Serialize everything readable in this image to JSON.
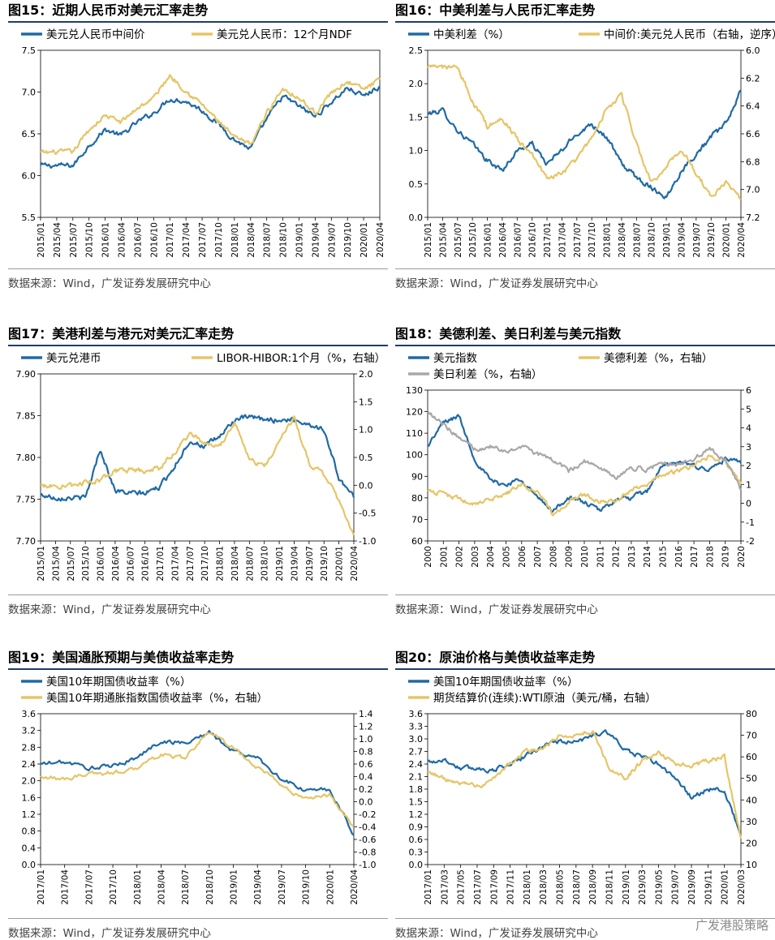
{
  "watermark": "广发港股策略",
  "chart_data": [
    {
      "id": "fig15",
      "title": "图15：近期人民币对美元汇率走势",
      "source": "数据来源：Wind，广发证券发展研究中心",
      "type": "line",
      "legend_position": "top",
      "x": [
        "2015/01",
        "2015/04",
        "2015/07",
        "2015/10",
        "2016/01",
        "2016/04",
        "2016/07",
        "2016/10",
        "2017/01",
        "2017/04",
        "2017/07",
        "2017/10",
        "2018/01",
        "2018/04",
        "2018/07",
        "2018/10",
        "2019/01",
        "2019/04",
        "2019/07",
        "2019/10",
        "2020/01",
        "2020/04"
      ],
      "x_ticks": [
        "2015/01",
        "2015/04",
        "2015/07",
        "2015/10",
        "2016/01",
        "2016/04",
        "2016/07",
        "2016/10",
        "2017/01",
        "2017/04",
        "2017/07",
        "2017/10",
        "2018/01",
        "2018/04",
        "2018/07",
        "2018/10",
        "2019/01",
        "2019/04",
        "2019/07",
        "2019/10",
        "2020/01",
        "2020/04"
      ],
      "ylim": [
        5.5,
        7.5
      ],
      "y_ticks": [
        "5.5",
        "6.0",
        "6.5",
        "7.0",
        "7.5"
      ],
      "series": [
        {
          "name": "美元兑人民币中间价",
          "color": "#1f6aa5",
          "axis": "left",
          "values": [
            6.12,
            6.12,
            6.12,
            6.36,
            6.55,
            6.48,
            6.64,
            6.75,
            6.92,
            6.89,
            6.78,
            6.62,
            6.43,
            6.32,
            6.68,
            6.95,
            6.83,
            6.71,
            6.88,
            7.05,
            6.95,
            7.07
          ]
        },
        {
          "name": "美元兑人民币：12个月NDF",
          "color": "#e6c567",
          "axis": "left",
          "values": [
            6.27,
            6.28,
            6.28,
            6.55,
            6.72,
            6.64,
            6.81,
            6.93,
            7.2,
            7.02,
            6.85,
            6.65,
            6.45,
            6.37,
            6.75,
            7.05,
            6.93,
            6.75,
            6.99,
            7.13,
            7.03,
            7.15
          ]
        }
      ]
    },
    {
      "id": "fig16",
      "title": "图16：中美利差与人民币汇率走势",
      "source": "数据来源：Wind，广发证券发展研究中心",
      "type": "line",
      "legend_position": "top",
      "x": [
        "2015/01",
        "2015/04",
        "2015/07",
        "2015/10",
        "2016/01",
        "2016/04",
        "2016/07",
        "2016/10",
        "2017/01",
        "2017/04",
        "2017/07",
        "2017/10",
        "2018/01",
        "2018/04",
        "2018/07",
        "2018/10",
        "2019/01",
        "2019/04",
        "2019/07",
        "2019/10",
        "2020/01",
        "2020/04"
      ],
      "x_ticks": [
        "2015/01",
        "2015/04",
        "2015/07",
        "2015/10",
        "2016/01",
        "2016/04",
        "2016/07",
        "2016/10",
        "2017/01",
        "2017/04",
        "2017/07",
        "2017/10",
        "2018/01",
        "2018/04",
        "2018/07",
        "2018/10",
        "2019/01",
        "2019/04",
        "2019/07",
        "2019/10",
        "2020/01",
        "2020/04"
      ],
      "ylim": [
        0.0,
        2.5
      ],
      "y_ticks": [
        "0.0",
        "0.5",
        "1.0",
        "1.5",
        "2.0",
        "2.5"
      ],
      "y2lim": [
        6.0,
        7.2
      ],
      "y2_reversed": true,
      "y2_ticks": [
        "6.0",
        "6.2",
        "6.4",
        "6.6",
        "6.8",
        "7.0",
        "7.2"
      ],
      "series": [
        {
          "name": "中美利差（%）",
          "color": "#1f6aa5",
          "axis": "left",
          "values": [
            1.55,
            1.6,
            1.3,
            1.1,
            0.85,
            0.7,
            1.0,
            1.1,
            0.8,
            1.0,
            1.25,
            1.4,
            1.2,
            0.8,
            0.6,
            0.45,
            0.3,
            0.7,
            0.95,
            1.2,
            1.4,
            1.9
          ]
        },
        {
          "name": "中间价:美元兑人民币（右轴，逆序）",
          "color": "#e6c567",
          "axis": "right",
          "values": [
            6.12,
            6.12,
            6.12,
            6.36,
            6.55,
            6.48,
            6.64,
            6.75,
            6.92,
            6.89,
            6.78,
            6.62,
            6.43,
            6.32,
            6.68,
            6.95,
            6.83,
            6.71,
            6.88,
            7.05,
            6.95,
            7.07
          ]
        }
      ]
    },
    {
      "id": "fig17",
      "title": "图17：美港利差与港元对美元汇率走势",
      "source": "数据来源：Wind，广发证券发展研究中心",
      "type": "line",
      "legend_position": "top",
      "x": [
        "2015/01",
        "2015/04",
        "2015/07",
        "2015/10",
        "2016/01",
        "2016/04",
        "2016/07",
        "2016/10",
        "2017/01",
        "2017/04",
        "2017/07",
        "2017/10",
        "2018/01",
        "2018/04",
        "2018/07",
        "2018/10",
        "2019/01",
        "2019/04",
        "2019/07",
        "2019/10",
        "2020/01",
        "2020/04"
      ],
      "x_ticks": [
        "2015/01",
        "2015/04",
        "2015/07",
        "2015/10",
        "2016/01",
        "2016/04",
        "2016/07",
        "2016/10",
        "2017/01",
        "2017/04",
        "2017/07",
        "2017/10",
        "2018/01",
        "2018/04",
        "2018/07",
        "2018/10",
        "2019/01",
        "2019/04",
        "2019/07",
        "2019/10",
        "2020/01",
        "2020/04"
      ],
      "ylim": [
        7.7,
        7.9
      ],
      "y_ticks": [
        "7.70",
        "7.75",
        "7.80",
        "7.85",
        "7.90"
      ],
      "y2lim": [
        -1.0,
        2.0
      ],
      "y2_ticks": [
        "-1.0",
        "-0.5",
        "0.0",
        "0.5",
        "1.0",
        "1.5",
        "2.0"
      ],
      "series": [
        {
          "name": "美元兑港币",
          "color": "#1f6aa5",
          "axis": "left",
          "values": [
            7.755,
            7.752,
            7.752,
            7.751,
            7.81,
            7.76,
            7.757,
            7.757,
            7.765,
            7.79,
            7.82,
            7.813,
            7.825,
            7.845,
            7.848,
            7.845,
            7.845,
            7.845,
            7.84,
            7.833,
            7.775,
            7.752
          ]
        },
        {
          "name": "LIBOR-HIBOR:1个月（%，右轴）",
          "color": "#e6c567",
          "axis": "right",
          "values": [
            0.0,
            0.0,
            0.0,
            0.05,
            0.1,
            0.25,
            0.28,
            0.25,
            0.3,
            0.6,
            0.95,
            0.75,
            0.7,
            1.1,
            0.5,
            0.3,
            0.8,
            1.2,
            0.4,
            0.2,
            -0.3,
            -0.9
          ]
        }
      ]
    },
    {
      "id": "fig18",
      "title": "图18：美德利差、美日利差与美元指数",
      "source": "数据来源：Wind，广发证券发展研究中心",
      "type": "line",
      "legend_position": "top",
      "x": [
        "2000",
        "2001",
        "2002",
        "2003",
        "2004",
        "2005",
        "2006",
        "2007",
        "2008",
        "2009",
        "2010",
        "2011",
        "2012",
        "2013",
        "2014",
        "2015",
        "2016",
        "2017",
        "2018",
        "2019",
        "2020"
      ],
      "x_ticks": [
        "2000",
        "2001",
        "2002",
        "2003",
        "2004",
        "2005",
        "2006",
        "2007",
        "2008",
        "2009",
        "2010",
        "2011",
        "2012",
        "2013",
        "2014",
        "2015",
        "2016",
        "2017",
        "2018",
        "2019",
        "2020"
      ],
      "ylim": [
        60,
        130
      ],
      "y_ticks": [
        "60",
        "70",
        "80",
        "90",
        "100",
        "110",
        "120",
        "130"
      ],
      "y2lim": [
        -2,
        6
      ],
      "y2_ticks": [
        "-2",
        "-1",
        "0",
        "1",
        "2",
        "3",
        "4",
        "5",
        "6"
      ],
      "series": [
        {
          "name": "美元指数",
          "color": "#1f6aa5",
          "axis": "left",
          "values": [
            104,
            115,
            118,
            98,
            88,
            86,
            89,
            80,
            74,
            80,
            78,
            74,
            79,
            80,
            83,
            95,
            96,
            95,
            93,
            98,
            96
          ]
        },
        {
          "name": "美德利差（%，右轴）",
          "color": "#e6c567",
          "axis": "right",
          "values": [
            0.6,
            0.5,
            0.2,
            0.0,
            0.2,
            0.5,
            1.0,
            0.6,
            -0.6,
            0.1,
            0.5,
            0.1,
            0.1,
            0.7,
            0.9,
            1.6,
            1.7,
            2.0,
            2.5,
            2.2,
            1.0
          ]
        },
        {
          "name": "美日利差（%，右轴）",
          "color": "#a8a8a8",
          "axis": "right",
          "values": [
            4.8,
            4.2,
            3.5,
            2.9,
            3.0,
            2.8,
            3.0,
            2.6,
            2.3,
            1.7,
            2.2,
            1.9,
            1.4,
            1.9,
            1.8,
            2.1,
            2.1,
            2.4,
            2.9,
            2.3,
            0.7
          ]
        }
      ]
    },
    {
      "id": "fig19",
      "title": "图19：美国通胀预期与美债收益率走势",
      "source": "数据来源：Wind，广发证券发展研究中心",
      "type": "line",
      "legend_position": "top",
      "x": [
        "2017/01",
        "2017/04",
        "2017/07",
        "2017/10",
        "2018/01",
        "2018/04",
        "2018/07",
        "2018/10",
        "2019/01",
        "2019/04",
        "2019/07",
        "2019/10",
        "2020/01",
        "2020/04"
      ],
      "x_ticks": [
        "2017/01",
        "2017/04",
        "2017/07",
        "2017/10",
        "2018/01",
        "2018/04",
        "2018/07",
        "2018/10",
        "2019/01",
        "2019/04",
        "2019/07",
        "2019/10",
        "2020/01",
        "2020/04"
      ],
      "ylim": [
        0.0,
        3.6
      ],
      "y_ticks": [
        "0.0",
        "0.4",
        "0.8",
        "1.2",
        "1.6",
        "2.0",
        "2.4",
        "2.8",
        "3.2",
        "3.6"
      ],
      "y2lim": [
        -1.0,
        1.4
      ],
      "y2_ticks": [
        "-1.0",
        "-0.8",
        "-0.6",
        "-0.4",
        "-0.2",
        "0.0",
        "0.2",
        "0.4",
        "0.6",
        "0.8",
        "1.0",
        "1.2",
        "1.4"
      ],
      "series": [
        {
          "name": "美国10年期国债收益率（%）",
          "color": "#1f6aa5",
          "axis": "left",
          "values": [
            2.4,
            2.45,
            2.3,
            2.35,
            2.55,
            2.95,
            2.9,
            3.15,
            2.7,
            2.55,
            2.05,
            1.75,
            1.8,
            0.7
          ]
        },
        {
          "name": "美国10年期通胀指数国债收益率（%，右轴）",
          "color": "#e6c567",
          "axis": "right",
          "values": [
            0.4,
            0.35,
            0.45,
            0.45,
            0.55,
            0.75,
            0.7,
            1.1,
            0.85,
            0.55,
            0.25,
            0.05,
            0.1,
            -0.4
          ]
        }
      ]
    },
    {
      "id": "fig20",
      "title": "图20：原油价格与美债收益率走势",
      "source": "数据来源：Wind，广发证券发展研究中心",
      "type": "line",
      "legend_position": "top",
      "x": [
        "2017/01",
        "2017/03",
        "2017/05",
        "2017/07",
        "2017/09",
        "2017/11",
        "2018/01",
        "2018/03",
        "2018/05",
        "2018/07",
        "2018/09",
        "2018/11",
        "2019/01",
        "2019/03",
        "2019/05",
        "2019/07",
        "2019/09",
        "2019/11",
        "2020/01",
        "2020/03"
      ],
      "x_ticks": [
        "2017/01",
        "2017/03",
        "2017/05",
        "2017/07",
        "2017/09",
        "2017/11",
        "2018/01",
        "2018/03",
        "2018/05",
        "2018/07",
        "2018/09",
        "2018/11",
        "2019/01",
        "2019/03",
        "2019/05",
        "2019/07",
        "2019/09",
        "2019/11",
        "2020/01",
        "2020/03"
      ],
      "ylim": [
        0.0,
        3.6
      ],
      "y_ticks": [
        "0.0",
        "0.3",
        "0.6",
        "0.9",
        "1.2",
        "1.5",
        "1.8",
        "2.1",
        "2.4",
        "2.7",
        "3.0",
        "3.3",
        "3.6"
      ],
      "y2lim": [
        10,
        80
      ],
      "y2_ticks": [
        "10",
        "20",
        "30",
        "40",
        "50",
        "60",
        "70",
        "80"
      ],
      "series": [
        {
          "name": "美国10年期国债收益率（%）",
          "color": "#1f6aa5",
          "axis": "left",
          "values": [
            2.45,
            2.5,
            2.3,
            2.3,
            2.25,
            2.4,
            2.6,
            2.85,
            2.95,
            2.9,
            3.1,
            3.15,
            2.7,
            2.6,
            2.4,
            2.05,
            1.6,
            1.8,
            1.75,
            0.7
          ]
        },
        {
          "name": "期货结算价(连续):WTI原油（美元/桶，右轴）",
          "color": "#e6c567",
          "axis": "right",
          "values": [
            53,
            50,
            48,
            46,
            50,
            57,
            63,
            64,
            70,
            70,
            72,
            55,
            50,
            58,
            62,
            57,
            56,
            58,
            60,
            22
          ]
        }
      ]
    }
  ]
}
